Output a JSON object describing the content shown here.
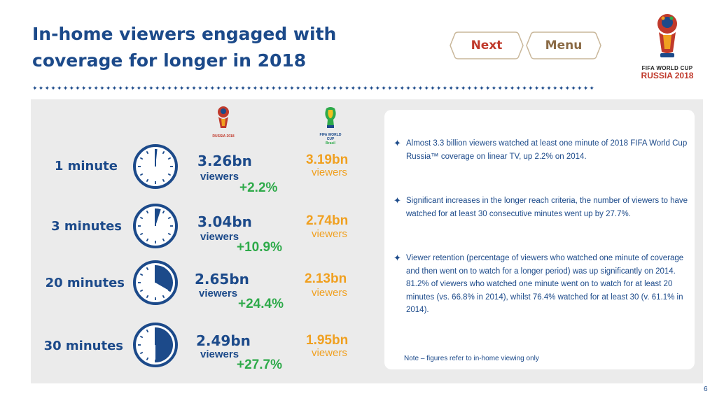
{
  "title": {
    "line1": "In-home viewers engaged with",
    "line2": "coverage for longer in 2018"
  },
  "nav": {
    "next_label": "Next",
    "menu_label": "Menu"
  },
  "logo": {
    "line1": "FIFA WORLD CUP",
    "line2": "RUSSIA 2018"
  },
  "logo_2018_small": {
    "caption": "RUSSIA 2018"
  },
  "logo_2014_small": {
    "caption1": "FIFA WORLD CUP",
    "caption2": "Brasil"
  },
  "divider_pattern": "✦✦✦✦✦✦✦✦✦✦✦✦✦✦✦✦✦✦✦✦✦✦✦✦✦✦✦✦✦✦✦✦✦✦✦✦✦✦✦✦✦✦✦✦✦✦✦✦✦✦✦✦✦✦✦✦✦✦✦✦✦✦✦✦✦✦✦✦✦✦✦✦✦✦✦✦✦✦✦✦✦✦✦✦✦✦✦✦✦✦✦✦",
  "rows": [
    {
      "label": "1 minute",
      "minutes": 1,
      "v2018": "3.26bn",
      "viewers": "viewers",
      "change": "+2.2%",
      "v2014": "3.19bn"
    },
    {
      "label": "3 minutes",
      "minutes": 3,
      "v2018": "3.04bn",
      "viewers": "viewers",
      "change": "+10.9%",
      "v2014": "2.74bn"
    },
    {
      "label": "20 minutes",
      "minutes": 20,
      "v2018": "2.65bn",
      "viewers": "viewers",
      "change": "+24.4%",
      "v2014": "2.13bn"
    },
    {
      "label": "30 minutes",
      "minutes": 30,
      "v2018": "2.49bn",
      "viewers": "viewers",
      "change": "+27.7%",
      "v2014": "1.95bn"
    }
  ],
  "notes": [
    "Almost 3.3 billion viewers watched at least one minute of 2018 FIFA World Cup Russia™ coverage on linear TV, up 2.2% on 2014.",
    "Significant increases in the longer reach criteria, the number of viewers to have watched for at least 30 consecutive minutes went up by 27.7%.",
    "Viewer retention (percentage of viewers who watched one minute of coverage and then went on to watch for a longer period) was up significantly on 2014. 81.2% of viewers who watched one minute went on to watch for at least 20 minutes (vs. 66.8% in 2014), whilst 76.4% watched for at least 30 (v. 61.1% in 2014)."
  ],
  "footnote": "Note – figures refer to in-home viewing only",
  "page_number": "6",
  "colors": {
    "navy": "#1c4a8a",
    "green": "#2eaa4a",
    "orange": "#f0a020",
    "red": "#c0392b"
  },
  "icons": [
    "star-bullet-icon",
    "clock-icon",
    "world-cup-2018-logo",
    "world-cup-2014-logo"
  ]
}
